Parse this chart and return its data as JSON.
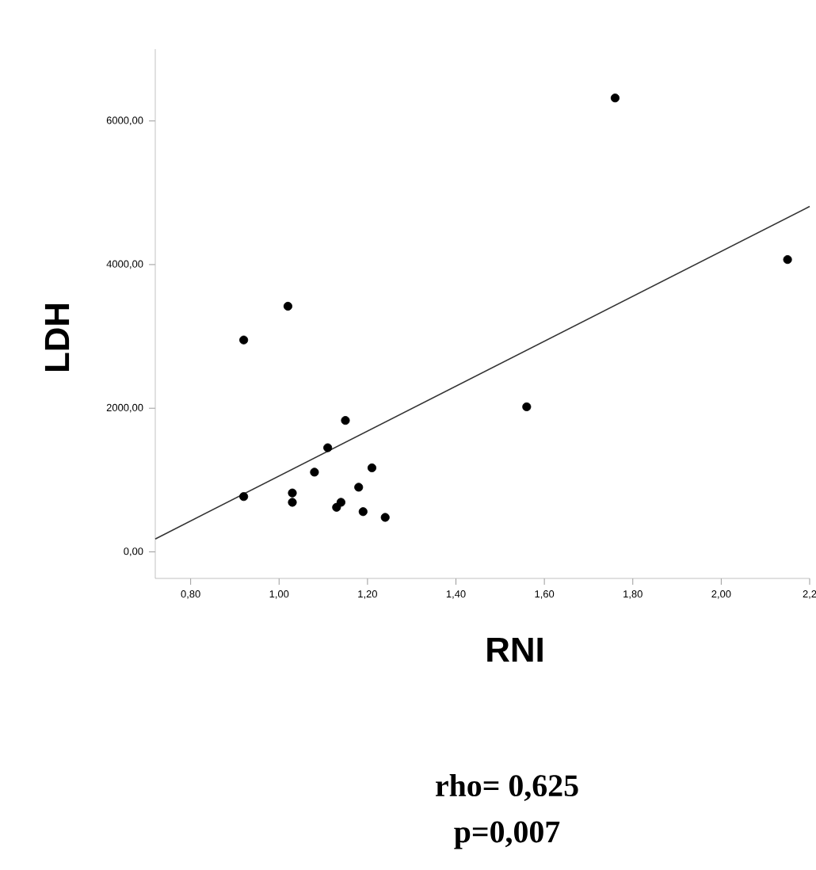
{
  "chart_data": {
    "type": "scatter",
    "xlabel": "RNI",
    "ylabel": "LDH",
    "xlim": [
      0.72,
      2.2
    ],
    "ylim": [
      -370,
      7000
    ],
    "xticks": [
      {
        "value": 0.8,
        "label": "0,80"
      },
      {
        "value": 1.0,
        "label": "1,00"
      },
      {
        "value": 1.2,
        "label": "1,20"
      },
      {
        "value": 1.4,
        "label": "1,40"
      },
      {
        "value": 1.6,
        "label": "1,60"
      },
      {
        "value": 1.8,
        "label": "1,80"
      },
      {
        "value": 2.0,
        "label": "2,00"
      },
      {
        "value": 2.2,
        "label": "2,2"
      }
    ],
    "yticks": [
      {
        "value": 0,
        "label": "0,00"
      },
      {
        "value": 2000,
        "label": "2000,00"
      },
      {
        "value": 4000,
        "label": "4000,00"
      },
      {
        "value": 6000,
        "label": "6000,00"
      }
    ],
    "grid": false,
    "series": [
      {
        "color": "#000000",
        "x": [
          0.92,
          1.02,
          1.76,
          2.15,
          1.56,
          1.15,
          1.11,
          1.08,
          1.21,
          1.18,
          0.92,
          1.03,
          1.03,
          1.13,
          1.14,
          1.19,
          1.24
        ],
        "values": [
          2950,
          3420,
          6320,
          4070,
          2020,
          1830,
          1450,
          1110,
          1170,
          900,
          770,
          820,
          690,
          620,
          690,
          560,
          480
        ]
      },
      {
        "type": "line",
        "color": "#333333",
        "x": [
          0.72,
          2.2
        ],
        "values": [
          180,
          4810
        ]
      }
    ],
    "annotations": [
      "rho= 0,625",
      "p=0,007"
    ]
  }
}
